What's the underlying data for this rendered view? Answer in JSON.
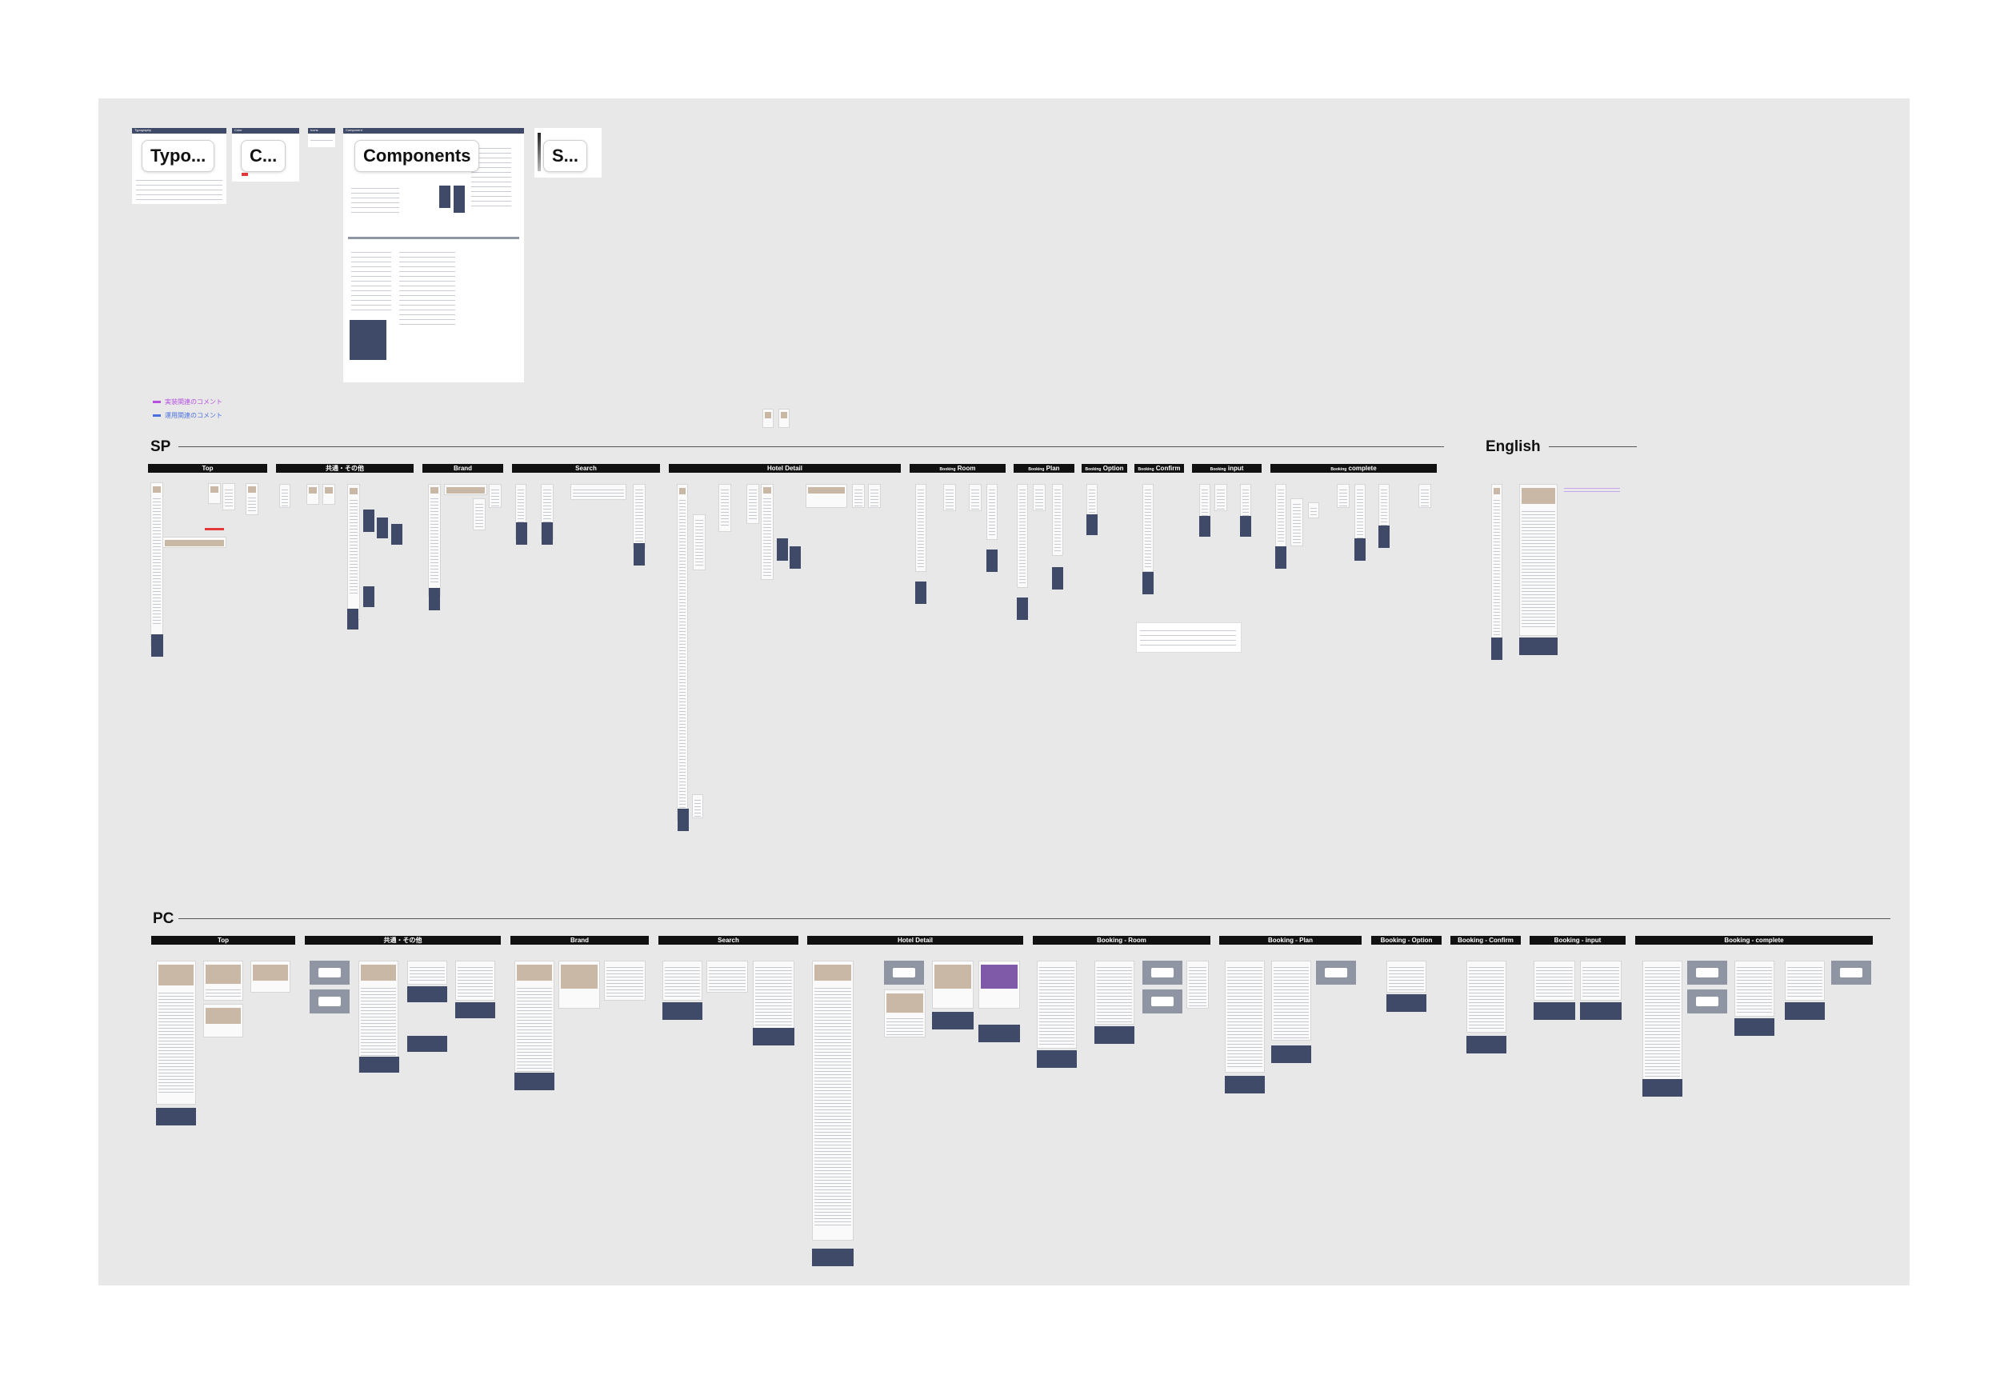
{
  "board": {
    "background": "#e8e8e8",
    "page_background": "#ffffff"
  },
  "top_frames": {
    "typography": {
      "header": "Typography",
      "label": "Typo..."
    },
    "color": {
      "header": "Color",
      "label": "C..."
    },
    "icons": {
      "header": "Icons"
    },
    "components": {
      "header": "Component",
      "label": "Components"
    },
    "spacing": {
      "label": "S..."
    }
  },
  "legend": [
    {
      "label": "実装関連のコメント",
      "color": "#b44fe0"
    },
    {
      "label": "運用関連のコメント",
      "color": "#4a6fe0"
    }
  ],
  "sections": {
    "sp": {
      "title": "SP",
      "categories": [
        "Top",
        "共通・その他",
        "Brand",
        "Search",
        "Hotel Detail",
        "Booking - Room",
        "Booking - Plan",
        "Booking - Option",
        "Booking - Confirm",
        "Booking - input",
        "Booking - complete"
      ],
      "category_labels": [
        "Top",
        "共通・その他",
        "Brand",
        "Search",
        "Hotel Detail",
        "Room",
        "Plan",
        "Option",
        "Confirm",
        "input",
        "complete"
      ],
      "category_prefix": "Booking"
    },
    "english": {
      "title": "English"
    },
    "pc": {
      "title": "PC",
      "categories": [
        "Top",
        "共通・その他",
        "Brand",
        "Search",
        "Hotel Detail",
        "Booking - Room",
        "Booking - Plan",
        "Booking - Option",
        "Booking - Confirm",
        "Booking - input",
        "Booking - complete"
      ]
    }
  },
  "colors": {
    "frame_header": "#3f4a68",
    "footer_block": "#3f4a68",
    "modal_gray": "#8f95a3",
    "photo": "#c9b8a6",
    "category_bar": "#111111",
    "accent_red": "#e23a3a"
  }
}
